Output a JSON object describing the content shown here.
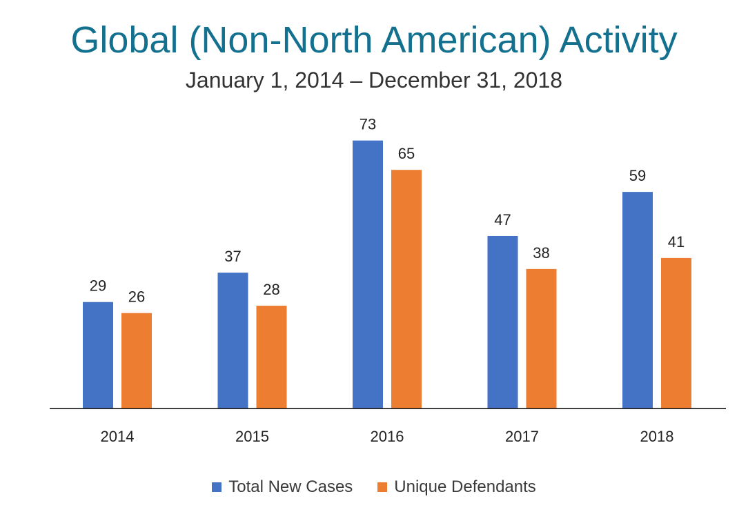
{
  "chart_data": {
    "type": "bar",
    "title": "Global (Non-North American) Activity",
    "subtitle": "January 1, 2014 – December 31, 2018",
    "categories": [
      "2014",
      "2015",
      "2016",
      "2017",
      "2018"
    ],
    "series": [
      {
        "name": "Total New Cases",
        "values": [
          29,
          37,
          73,
          47,
          59
        ],
        "color": "#4472c4"
      },
      {
        "name": "Unique Defendants",
        "values": [
          26,
          28,
          65,
          38,
          41
        ],
        "color": "#ed7d31"
      }
    ],
    "ylim": [
      0,
      80
    ],
    "grid": false,
    "data_labels": true,
    "legend": "bottom-center"
  }
}
